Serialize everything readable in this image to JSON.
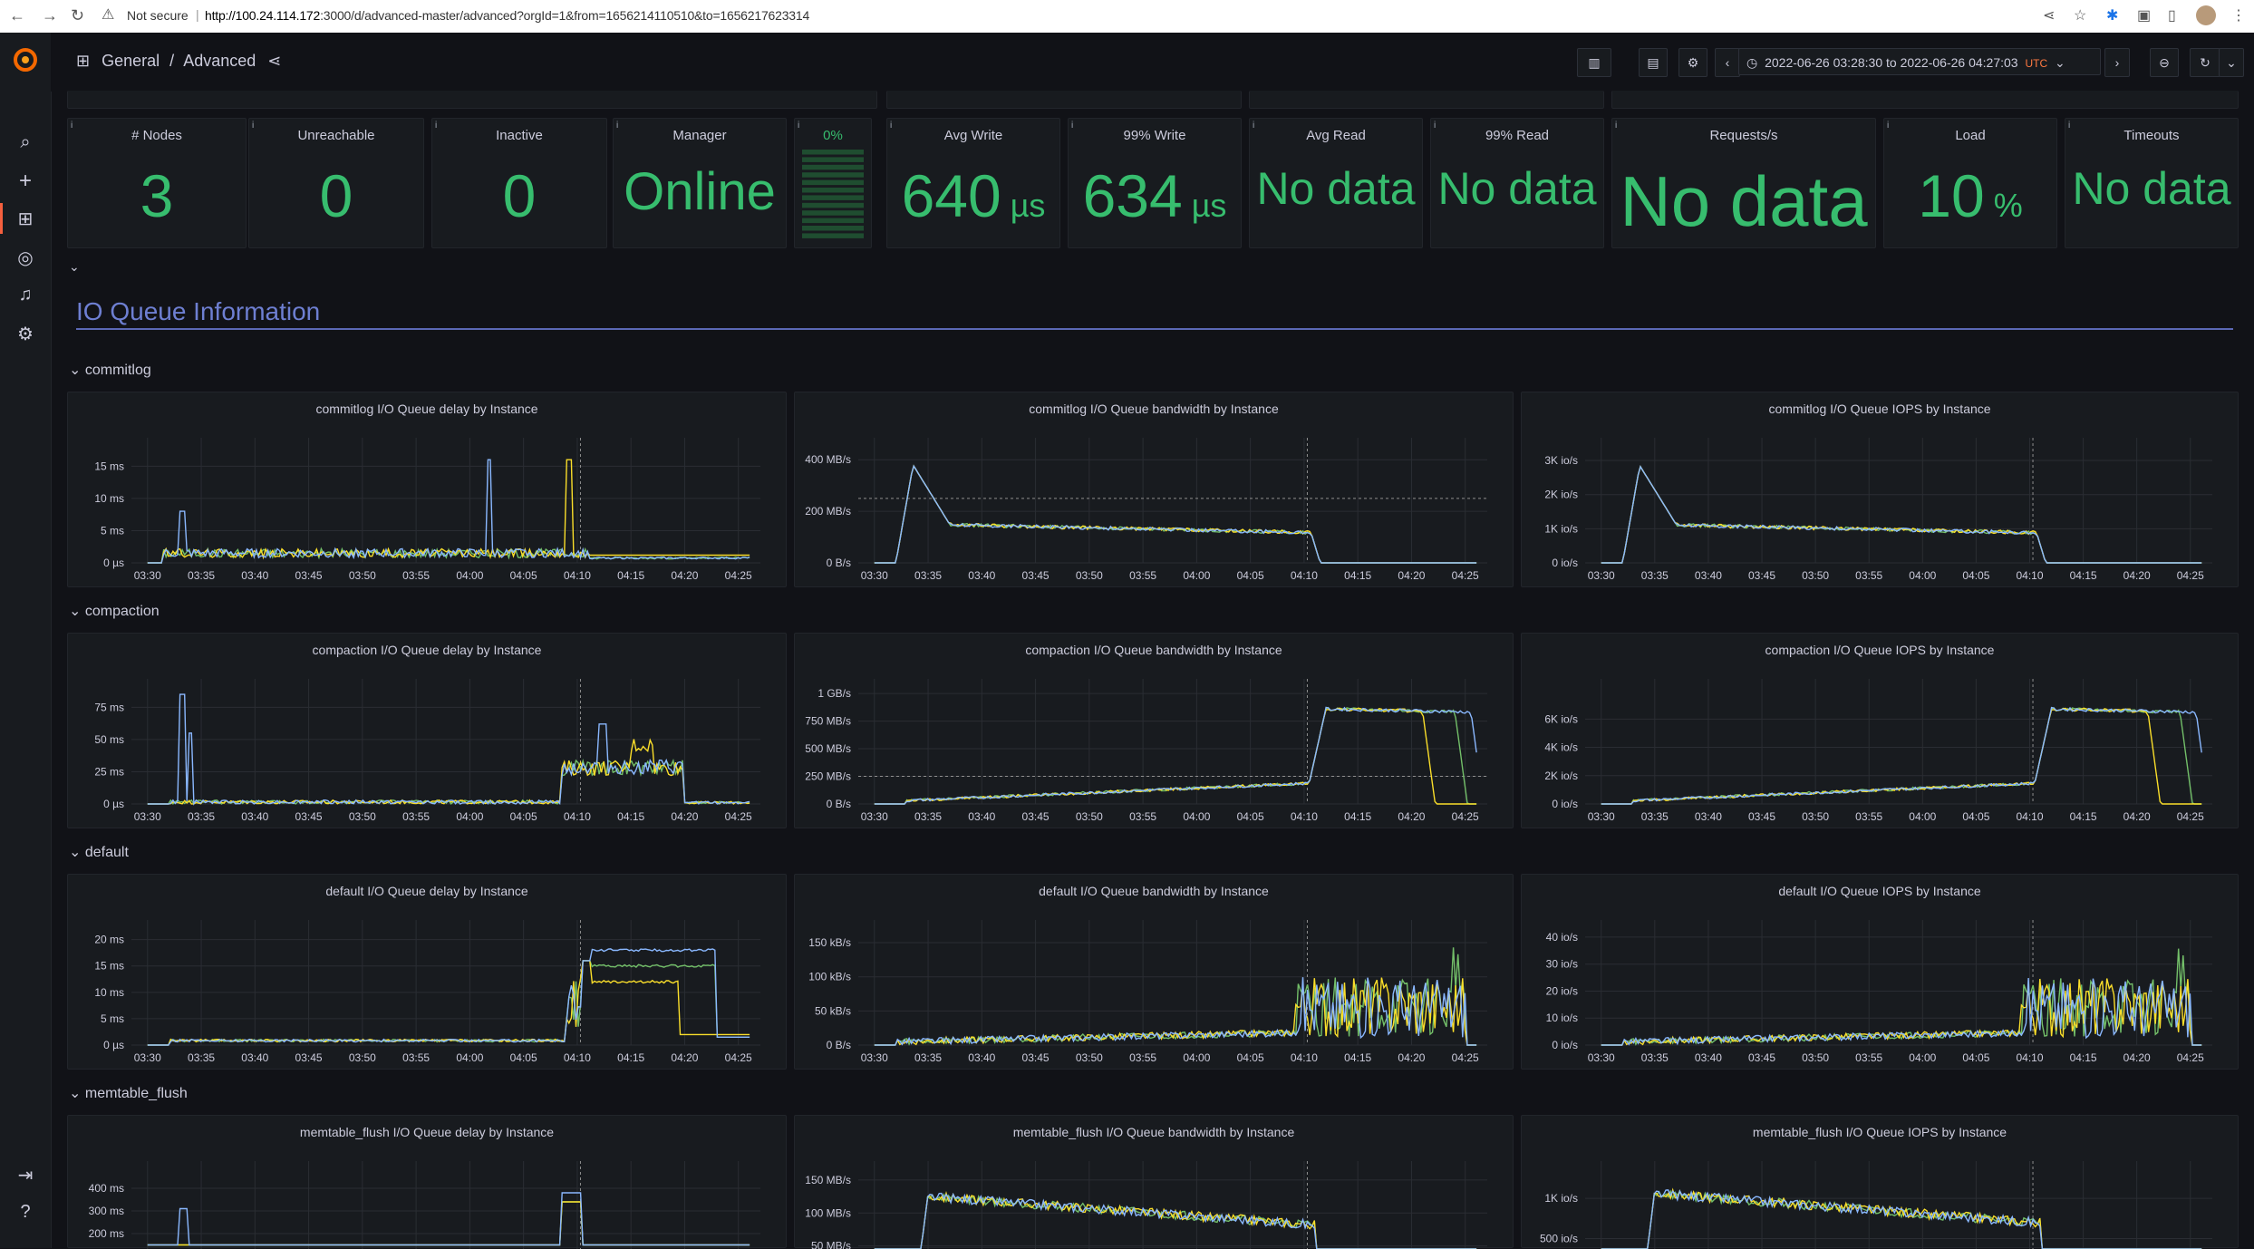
{
  "browser": {
    "security": "Not secure",
    "url_host": "http://100.24.114.172",
    "url_rest": ":3000/d/advanced-master/advanced?orgId=1&from=1656214110510&to=1656217623314"
  },
  "header": {
    "crumb_parent": "General",
    "crumb_sep": "/",
    "crumb_current": "Advanced",
    "time_range": "2022-06-26 03:28:30 to 2022-06-26 04:27:03",
    "timezone": "UTC"
  },
  "stats": [
    {
      "title": "# Nodes",
      "value": "3",
      "unit": ""
    },
    {
      "title": "Unreachable",
      "value": "0",
      "unit": ""
    },
    {
      "title": "Inactive",
      "value": "0",
      "unit": ""
    },
    {
      "title": "Manager",
      "value": "Online",
      "unit": ""
    },
    {
      "title": "0%",
      "value": "",
      "unit": "",
      "gauge": 0.08
    },
    {
      "title": "Avg Write",
      "value": "640",
      "unit": "µs"
    },
    {
      "title": "99% Write",
      "value": "634",
      "unit": "µs"
    },
    {
      "title": "Avg Read",
      "value": "No data",
      "unit": ""
    },
    {
      "title": "99% Read",
      "value": "No data",
      "unit": ""
    },
    {
      "title": "Requests/s",
      "value": "No data",
      "unit": ""
    },
    {
      "title": "Load",
      "value": "10",
      "unit": "%"
    },
    {
      "title": "Timeouts",
      "value": "No data",
      "unit": ""
    }
  ],
  "section_title": "IO Queue Information",
  "x_ticks": [
    "03:30",
    "03:35",
    "03:40",
    "03:45",
    "03:50",
    "03:55",
    "04:00",
    "04:05",
    "04:10",
    "04:15",
    "04:20",
    "04:25"
  ],
  "colors": {
    "series_a": "#73bf69",
    "series_b": "#fade2a",
    "series_c": "#8ab8ff"
  },
  "rows": [
    {
      "name": "commitlog",
      "panels": [
        {
          "title": "commitlog I/O Queue delay by Instance",
          "profile": "delay_commit",
          "ymax": 18,
          "yticks": [
            {
              "v": 0,
              "l": "0 µs"
            },
            {
              "v": 5,
              "l": "5 ms"
            },
            {
              "v": 10,
              "l": "10 ms"
            },
            {
              "v": 15,
              "l": "15 ms"
            }
          ]
        },
        {
          "title": "commitlog I/O Queue bandwidth by Instance",
          "profile": "bw_commit",
          "ymax": 450,
          "yticks": [
            {
              "v": 0,
              "l": "0 B/s"
            },
            {
              "v": 200,
              "l": "200 MB/s"
            },
            {
              "v": 400,
              "l": "400 MB/s"
            }
          ]
        },
        {
          "title": "commitlog I/O Queue IOPS by Instance",
          "profile": "bw_commit",
          "ymax": 3.4,
          "scale": 0.0075,
          "yticks": [
            {
              "v": 0,
              "l": "0 io/s"
            },
            {
              "v": 1,
              "l": "1K io/s"
            },
            {
              "v": 2,
              "l": "2K io/s"
            },
            {
              "v": 3,
              "l": "3K io/s"
            }
          ]
        }
      ]
    },
    {
      "name": "compaction",
      "panels": [
        {
          "title": "compaction I/O Queue delay by Instance",
          "profile": "delay_comp",
          "ymax": 90,
          "yticks": [
            {
              "v": 0,
              "l": "0 µs"
            },
            {
              "v": 25,
              "l": "25 ms"
            },
            {
              "v": 50,
              "l": "50 ms"
            },
            {
              "v": 75,
              "l": "75 ms"
            }
          ]
        },
        {
          "title": "compaction I/O Queue bandwidth by Instance",
          "profile": "bw_comp",
          "ymax": 1050,
          "yticks": [
            {
              "v": 0,
              "l": "0 B/s"
            },
            {
              "v": 250,
              "l": "250 MB/s"
            },
            {
              "v": 500,
              "l": "500 MB/s"
            },
            {
              "v": 750,
              "l": "750 MB/s"
            },
            {
              "v": 1000,
              "l": "1 GB/s"
            }
          ]
        },
        {
          "title": "compaction I/O Queue IOPS by Instance",
          "profile": "bw_comp",
          "ymax": 8.2,
          "scale": 0.0078,
          "yticks": [
            {
              "v": 0,
              "l": "0 io/s"
            },
            {
              "v": 2,
              "l": "2K io/s"
            },
            {
              "v": 4,
              "l": "4K io/s"
            },
            {
              "v": 6,
              "l": "6K io/s"
            }
          ]
        }
      ]
    },
    {
      "name": "default",
      "panels": [
        {
          "title": "default I/O Queue delay by Instance",
          "profile": "delay_def",
          "ymax": 22,
          "yticks": [
            {
              "v": 0,
              "l": "0 µs"
            },
            {
              "v": 5,
              "l": "5 ms"
            },
            {
              "v": 10,
              "l": "10 ms"
            },
            {
              "v": 15,
              "l": "15 ms"
            },
            {
              "v": 20,
              "l": "20 ms"
            }
          ]
        },
        {
          "title": "default I/O Queue bandwidth by Instance",
          "profile": "bw_def",
          "ymax": 170,
          "yticks": [
            {
              "v": 0,
              "l": "0 B/s"
            },
            {
              "v": 50,
              "l": "50 kB/s"
            },
            {
              "v": 100,
              "l": "100 kB/s"
            },
            {
              "v": 150,
              "l": "150 kB/s"
            }
          ]
        },
        {
          "title": "default I/O Queue IOPS by Instance",
          "profile": "bw_def",
          "ymax": 43,
          "scale": 0.25,
          "yticks": [
            {
              "v": 0,
              "l": "0 io/s"
            },
            {
              "v": 10,
              "l": "10 io/s"
            },
            {
              "v": 20,
              "l": "20 io/s"
            },
            {
              "v": 30,
              "l": "30 io/s"
            },
            {
              "v": 40,
              "l": "40 io/s"
            }
          ]
        }
      ]
    },
    {
      "name": "memtable_flush",
      "panels": [
        {
          "title": "memtable_flush I/O Queue delay by Instance",
          "profile": "delay_mem",
          "ymax": 480,
          "yticks": [
            {
              "v": 200,
              "l": "200 ms"
            },
            {
              "v": 300,
              "l": "300 ms"
            },
            {
              "v": 400,
              "l": "400 ms"
            }
          ]
        },
        {
          "title": "memtable_flush I/O Queue bandwidth by Instance",
          "profile": "bw_mem",
          "ymax": 165,
          "yticks": [
            {
              "v": 50,
              "l": "50 MB/s"
            },
            {
              "v": 100,
              "l": "100 MB/s"
            },
            {
              "v": 150,
              "l": "150 MB/s"
            }
          ]
        },
        {
          "title": "memtable_flush I/O Queue IOPS by Instance",
          "profile": "bw_mem",
          "ymax": 1.35,
          "scale": 0.0085,
          "yticks": [
            {
              "v": 0.5,
              "l": "500 io/s"
            },
            {
              "v": 1,
              "l": "1K io/s"
            }
          ]
        }
      ]
    }
  ]
}
